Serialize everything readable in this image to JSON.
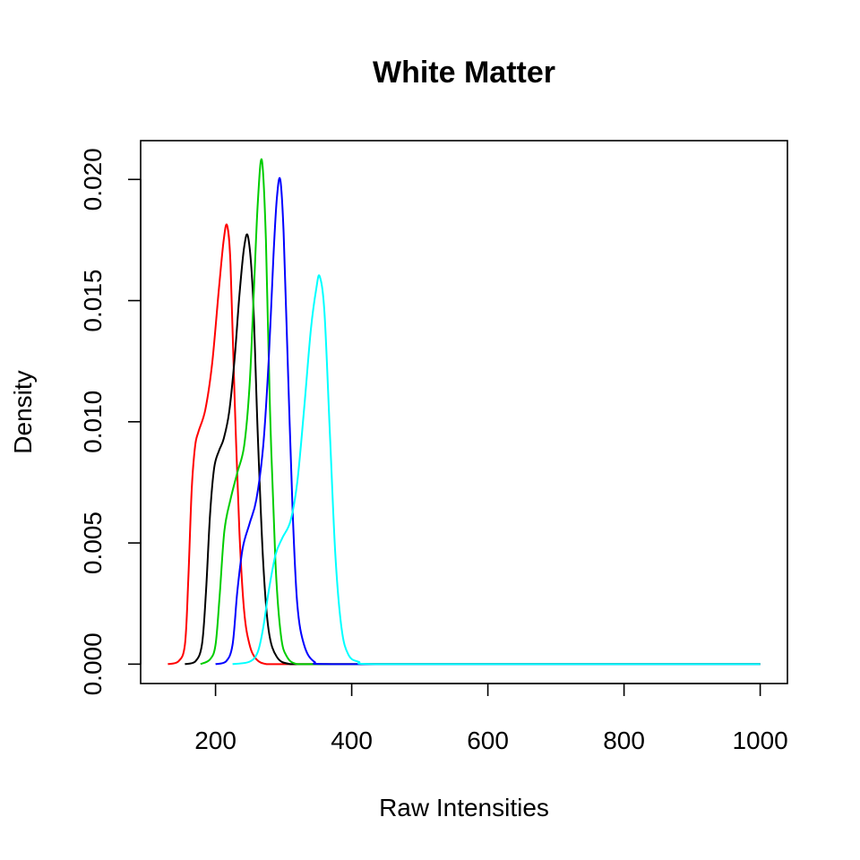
{
  "chart_data": {
    "type": "line",
    "title": "White Matter",
    "xlabel": "Raw Intensities",
    "ylabel": "Density",
    "xlim": [
      90,
      1040
    ],
    "ylim": [
      -0.0008,
      0.0216
    ],
    "x_ticks": [
      200,
      400,
      600,
      800,
      1000
    ],
    "x_tick_labels": [
      "200",
      "400",
      "600",
      "800",
      "1000"
    ],
    "y_ticks": [
      0.0,
      0.005,
      0.01,
      0.015,
      0.02
    ],
    "y_tick_labels": [
      "0.000",
      "0.005",
      "0.010",
      "0.015",
      "0.020"
    ],
    "grid": false,
    "legend": "none",
    "series": [
      {
        "color": "#ff0000",
        "x": [
          130,
          145,
          155,
          160,
          165,
          170,
          175,
          185,
          195,
          205,
          212,
          217,
          222,
          228,
          235,
          242,
          250,
          260,
          275,
          300,
          400,
          700,
          1000
        ],
        "y": [
          0.0,
          0.0001,
          0.0008,
          0.0035,
          0.0072,
          0.009,
          0.0096,
          0.0105,
          0.0124,
          0.0155,
          0.0175,
          0.0181,
          0.0165,
          0.011,
          0.0055,
          0.0022,
          0.0008,
          0.0002,
          0.0,
          0.0,
          0.0,
          0.0,
          0.0
        ]
      },
      {
        "color": "#000000",
        "x": [
          155,
          170,
          180,
          186,
          192,
          198,
          205,
          212,
          220,
          228,
          235,
          242,
          248,
          255,
          262,
          270,
          278,
          290,
          310,
          350,
          600,
          1000
        ],
        "y": [
          0.0,
          0.0001,
          0.0008,
          0.003,
          0.0062,
          0.0081,
          0.0088,
          0.0093,
          0.0104,
          0.0126,
          0.0152,
          0.0172,
          0.0176,
          0.0152,
          0.0095,
          0.0042,
          0.0014,
          0.0003,
          0.0,
          0.0,
          0.0,
          0.0
        ]
      },
      {
        "color": "#00cd00",
        "x": [
          178,
          192,
          200,
          206,
          213,
          222,
          232,
          242,
          250,
          256,
          262,
          268,
          274,
          280,
          288,
          296,
          305,
          320,
          350,
          600,
          1000
        ],
        "y": [
          0.0,
          0.0002,
          0.0008,
          0.0028,
          0.0055,
          0.0068,
          0.0079,
          0.009,
          0.0115,
          0.0152,
          0.019,
          0.0208,
          0.0175,
          0.0105,
          0.0042,
          0.0012,
          0.0003,
          0.0,
          0.0,
          0.0,
          0.0
        ]
      },
      {
        "color": "#0000ff",
        "x": [
          200,
          215,
          225,
          232,
          240,
          250,
          260,
          270,
          278,
          285,
          290,
          295,
          300,
          306,
          313,
          320,
          330,
          345,
          370,
          600,
          1000
        ],
        "y": [
          0.0,
          0.0001,
          0.0008,
          0.003,
          0.0048,
          0.0058,
          0.0068,
          0.009,
          0.0125,
          0.0168,
          0.0192,
          0.02,
          0.0178,
          0.0125,
          0.0065,
          0.0025,
          0.0008,
          0.0001,
          0.0,
          0.0,
          0.0
        ]
      },
      {
        "color": "#00ffff",
        "x": [
          225,
          250,
          262,
          270,
          278,
          288,
          298,
          310,
          320,
          330,
          340,
          348,
          353,
          360,
          368,
          376,
          385,
          395,
          410,
          440,
          700,
          1000
        ],
        "y": [
          0.0,
          0.0001,
          0.0005,
          0.0015,
          0.003,
          0.0045,
          0.0052,
          0.0059,
          0.0075,
          0.0105,
          0.0138,
          0.0155,
          0.016,
          0.0145,
          0.0095,
          0.0045,
          0.0015,
          0.0004,
          0.0001,
          0.0,
          0.0,
          0.0
        ]
      }
    ]
  }
}
